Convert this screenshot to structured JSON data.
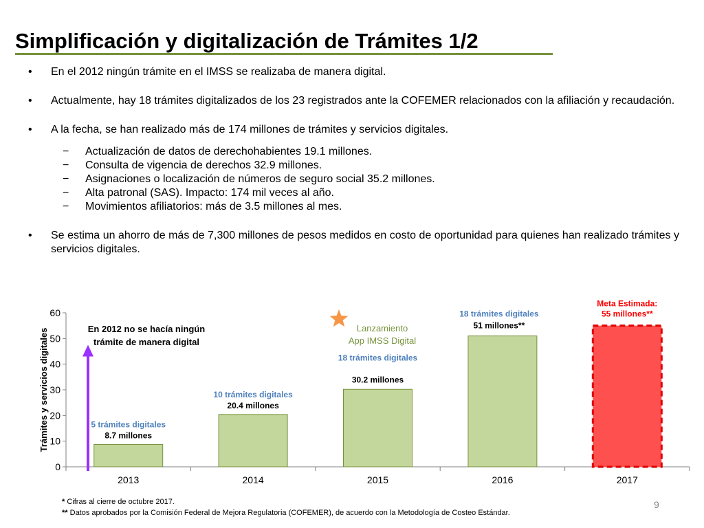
{
  "slide": {
    "title": "Simplificación y digitalización de Trámites 1/2",
    "page_number": "9",
    "accent_color": "#77933c"
  },
  "bullets": {
    "b1": "En el 2012 ningún trámite en el IMSS se realizaba de manera digital.",
    "b2": "Actualmente, hay 18 trámites digitalizados de los 23 registrados ante la COFEMER relacionados con la afiliación y recaudación.",
    "b3": "A la fecha, se han realizado más de 174 millones de trámites y servicios digitales.",
    "sub": [
      "Actualización de datos de derechohabientes 19.1 millones.",
      "Consulta de vigencia de derechos 32.9 millones.",
      "Asignaciones o localización de números de seguro social 35.2 millones.",
      "Alta patronal (SAS). Impacto: 174 mil veces al año.",
      "Movimientos afiliatorios: más de 3.5 millones al mes."
    ],
    "b4": "Se estima un ahorro de más de 7,300 millones de pesos medidos en costo de oportunidad para quienes han realizado trámites y servicios digitales.",
    "bullet_symbol": "•",
    "dash_symbol": "−"
  },
  "chart_data": {
    "type": "bar",
    "categories": [
      "2013",
      "2014",
      "2015",
      "2016",
      "2017"
    ],
    "values": [
      8.7,
      20.4,
      30.2,
      51,
      55
    ],
    "bar_styles": [
      "actual",
      "actual",
      "actual",
      "actual",
      "goal"
    ],
    "value_labels": [
      "8.7 millones",
      "20.4 millones",
      "30.2 millones",
      "51 millones**",
      "55 millones**"
    ],
    "tramite_labels": [
      "5 trámites digitales",
      "10 trámites digitales",
      "18 trámites digitales",
      "18 trámites digitales",
      "Meta Estimada:"
    ],
    "ylabel": "Trámites y servicios digitales",
    "ylim": [
      0,
      60
    ],
    "yticks": [
      0,
      10,
      20,
      30,
      40,
      50,
      60
    ],
    "grid": false,
    "colors": {
      "bar": "#c3d69b",
      "bar_border": "#77933c",
      "goal": "#ff5050",
      "goal_border": "#e00000",
      "tramites_text": "#4f81bd",
      "goal_text": "#ff0000",
      "arrow": "#9b30ff",
      "star": "#f79646",
      "launch_text": "#77933c"
    },
    "annotations": {
      "note_2012_line1": "En 2012 no se hacía ningún",
      "note_2012_line2": "trámite de manera digital",
      "launch_line1": "Lanzamiento",
      "launch_line2": "App IMSS Digital",
      "star_icon": "star-icon",
      "arrow_icon": "arrow-up-icon"
    }
  },
  "footnotes": {
    "f1_mark": "*",
    "f1_text": " Cifras al cierre de  octubre 2017.",
    "f2_mark": "**",
    "f2_text": " Datos aprobados por la Comisión Federal de Mejora Regulatoria (COFEMER), de acuerdo con la Metodología de Costeo Estándar."
  }
}
